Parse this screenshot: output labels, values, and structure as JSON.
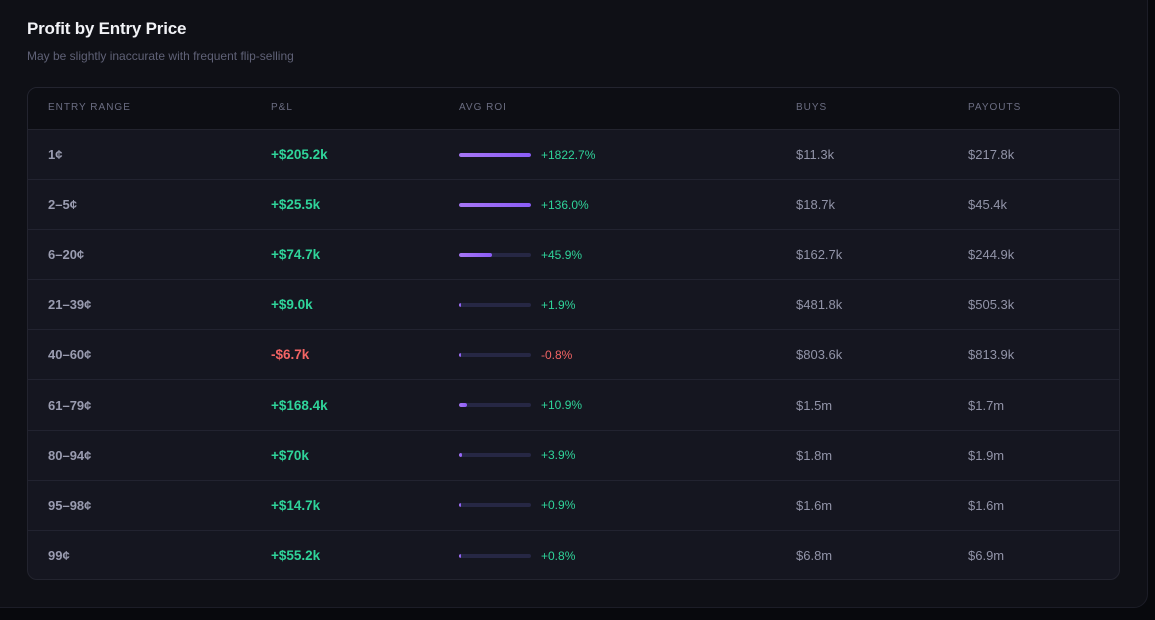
{
  "header": {
    "title": "Profit by Entry Price",
    "subtitle": "May be slightly inaccurate with frequent flip-selling"
  },
  "table": {
    "columns": [
      "ENTRY RANGE",
      "P&L",
      "AVG ROI",
      "BUYS",
      "PAYOUTS"
    ],
    "rows": [
      {
        "range": "1¢",
        "pnl": "+$205.2k",
        "pnl_sign": "pos",
        "roi": "+1822.7%",
        "roi_sign": "pos",
        "roi_fill": 1.0,
        "buys": "$11.3k",
        "payouts": "$217.8k"
      },
      {
        "range": "2–5¢",
        "pnl": "+$25.5k",
        "pnl_sign": "pos",
        "roi": "+136.0%",
        "roi_sign": "pos",
        "roi_fill": 1.0,
        "buys": "$18.7k",
        "payouts": "$45.4k"
      },
      {
        "range": "6–20¢",
        "pnl": "+$74.7k",
        "pnl_sign": "pos",
        "roi": "+45.9%",
        "roi_sign": "pos",
        "roi_fill": 0.459,
        "buys": "$162.7k",
        "payouts": "$244.9k"
      },
      {
        "range": "21–39¢",
        "pnl": "+$9.0k",
        "pnl_sign": "pos",
        "roi": "+1.9%",
        "roi_sign": "pos",
        "roi_fill": 0.019,
        "buys": "$481.8k",
        "payouts": "$505.3k"
      },
      {
        "range": "40–60¢",
        "pnl": "-$6.7k",
        "pnl_sign": "neg",
        "roi": "-0.8%",
        "roi_sign": "neg",
        "roi_fill": 0.008,
        "buys": "$803.6k",
        "payouts": "$813.9k"
      },
      {
        "range": "61–79¢",
        "pnl": "+$168.4k",
        "pnl_sign": "pos",
        "roi": "+10.9%",
        "roi_sign": "pos",
        "roi_fill": 0.109,
        "buys": "$1.5m",
        "payouts": "$1.7m"
      },
      {
        "range": "80–94¢",
        "pnl": "+$70k",
        "pnl_sign": "pos",
        "roi": "+3.9%",
        "roi_sign": "pos",
        "roi_fill": 0.039,
        "buys": "$1.8m",
        "payouts": "$1.9m"
      },
      {
        "range": "95–98¢",
        "pnl": "+$14.7k",
        "pnl_sign": "pos",
        "roi": "+0.9%",
        "roi_sign": "pos",
        "roi_fill": 0.009,
        "buys": "$1.6m",
        "payouts": "$1.6m"
      },
      {
        "range": "99¢",
        "pnl": "+$55.2k",
        "pnl_sign": "pos",
        "roi": "+0.8%",
        "roi_sign": "pos",
        "roi_fill": 0.008,
        "buys": "$6.8m",
        "payouts": "$6.9m"
      }
    ]
  },
  "colors": {
    "positive": "#2fd49a",
    "negative": "#f26464",
    "accent": "#8b5cf6"
  }
}
